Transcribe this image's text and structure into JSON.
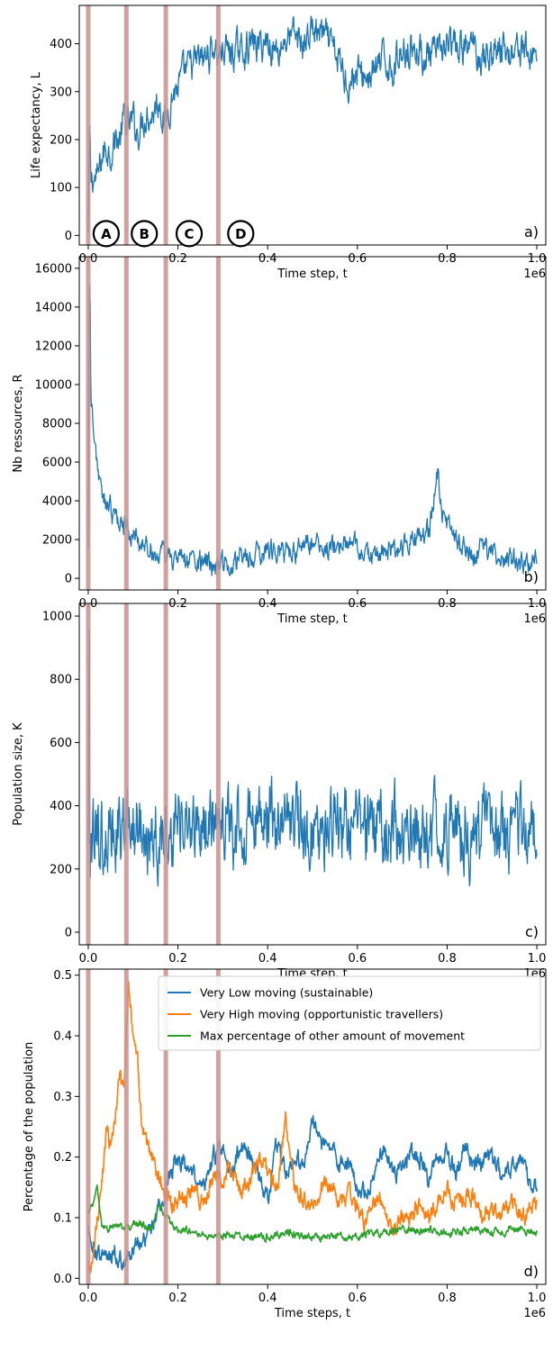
{
  "chart_data": [
    {
      "id": "a",
      "type": "line",
      "panel_label": "a)",
      "xlabel": "Time step, t",
      "x_scale_label": "1e6",
      "ylabel": "Life expectancy, L",
      "xlim": [
        -0.02,
        1.02
      ],
      "ylim": [
        -20,
        480
      ],
      "xticks": [
        0.0,
        0.2,
        0.4,
        0.6,
        0.8,
        1.0
      ],
      "xtick_labels": [
        "0.0",
        "0.2",
        "0.4",
        "0.6",
        "0.8",
        "1.0"
      ],
      "yticks": [
        0,
        100,
        200,
        300,
        400
      ],
      "ytick_labels": [
        "0",
        "100",
        "200",
        "300",
        "400"
      ],
      "phase_markers": [
        {
          "label": "A",
          "x": 0.04
        },
        {
          "label": "B",
          "x": 0.125
        },
        {
          "label": "C",
          "x": 0.225
        },
        {
          "label": "D",
          "x": 0.34
        }
      ],
      "series": [
        {
          "color": "#1f77b4",
          "x": [
            0.0,
            0.003,
            0.006,
            0.01,
            0.02,
            0.03,
            0.04,
            0.05,
            0.06,
            0.07,
            0.08,
            0.09,
            0.1,
            0.11,
            0.12,
            0.13,
            0.14,
            0.15,
            0.16,
            0.17,
            0.18,
            0.19,
            0.2,
            0.22,
            0.24,
            0.26,
            0.28,
            0.29,
            0.3,
            0.32,
            0.34,
            0.36,
            0.38,
            0.4,
            0.42,
            0.44,
            0.46,
            0.48,
            0.5,
            0.52,
            0.54,
            0.56,
            0.58,
            0.6,
            0.62,
            0.64,
            0.66,
            0.68,
            0.7,
            0.72,
            0.74,
            0.76,
            0.78,
            0.8,
            0.82,
            0.84,
            0.86,
            0.88,
            0.9,
            0.92,
            0.94,
            0.96,
            0.98,
            1.0
          ],
          "y": [
            0,
            220,
            110,
            120,
            115,
            160,
            185,
            175,
            205,
            195,
            245,
            225,
            240,
            215,
            235,
            260,
            250,
            270,
            285,
            230,
            270,
            300,
            310,
            345,
            360,
            370,
            395,
            375,
            390,
            380,
            385,
            400,
            395,
            405,
            385,
            410,
            415,
            400,
            430,
            420,
            395,
            360,
            320,
            340,
            330,
            345,
            365,
            350,
            390,
            395,
            380,
            370,
            375,
            400,
            385,
            390,
            395,
            370,
            385,
            390,
            380,
            400,
            375,
            385
          ],
          "noise": 28
        }
      ]
    },
    {
      "id": "b",
      "type": "line",
      "panel_label": "b)",
      "xlabel": "Time step, t",
      "x_scale_label": "1e6",
      "ylabel": "Nb ressources, R",
      "xlim": [
        -0.02,
        1.02
      ],
      "ylim": [
        -600,
        16600
      ],
      "xticks": [
        0.0,
        0.2,
        0.4,
        0.6,
        0.8,
        1.0
      ],
      "xtick_labels": [
        "0.0",
        "0.2",
        "0.4",
        "0.6",
        "0.8",
        "1.0"
      ],
      "yticks": [
        0,
        2000,
        4000,
        6000,
        8000,
        10000,
        12000,
        14000,
        16000
      ],
      "ytick_labels": [
        "0",
        "2000",
        "4000",
        "6000",
        "8000",
        "10000",
        "12000",
        "14000",
        "16000"
      ],
      "series": [
        {
          "color": "#1f77b4",
          "x": [
            0.0,
            0.002,
            0.004,
            0.006,
            0.01,
            0.015,
            0.02,
            0.025,
            0.03,
            0.04,
            0.05,
            0.06,
            0.07,
            0.08,
            0.09,
            0.1,
            0.12,
            0.14,
            0.16,
            0.18,
            0.2,
            0.22,
            0.24,
            0.26,
            0.28,
            0.3,
            0.32,
            0.34,
            0.36,
            0.38,
            0.4,
            0.42,
            0.44,
            0.46,
            0.48,
            0.5,
            0.52,
            0.54,
            0.56,
            0.58,
            0.6,
            0.62,
            0.64,
            0.66,
            0.68,
            0.7,
            0.72,
            0.74,
            0.76,
            0.78,
            0.79,
            0.8,
            0.82,
            0.84,
            0.86,
            0.88,
            0.9,
            0.92,
            0.94,
            0.96,
            0.98,
            1.0
          ],
          "y": [
            2000,
            14500,
            15500,
            9500,
            8000,
            7000,
            6000,
            5000,
            4200,
            3800,
            3600,
            3000,
            3000,
            2800,
            2500,
            2100,
            1800,
            1500,
            1100,
            1200,
            900,
            1000,
            900,
            700,
            500,
            700,
            800,
            1100,
            1000,
            1300,
            1500,
            1200,
            1400,
            1300,
            1600,
            1800,
            1400,
            1500,
            1800,
            1600,
            1600,
            1300,
            1100,
            1200,
            1400,
            1500,
            2000,
            2200,
            2500,
            5500,
            3000,
            2800,
            2000,
            1500,
            1300,
            1500,
            1200,
            1000,
            900,
            800,
            900,
            1000
          ],
          "noise": 450
        }
      ]
    },
    {
      "id": "c",
      "type": "line",
      "panel_label": "c)",
      "xlabel": "Time step, t",
      "x_scale_label": "1e6",
      "ylabel": "Population size, K",
      "xlim": [
        -0.02,
        1.02
      ],
      "ylim": [
        -40,
        1040
      ],
      "xticks": [
        0.0,
        0.2,
        0.4,
        0.6,
        0.8,
        1.0
      ],
      "xtick_labels": [
        "0.0",
        "0.2",
        "0.4",
        "0.6",
        "0.8",
        "1.0"
      ],
      "yticks": [
        0,
        200,
        400,
        600,
        800,
        1000
      ],
      "ytick_labels": [
        "0",
        "200",
        "400",
        "600",
        "800",
        "1000"
      ],
      "series": [
        {
          "color": "#1f77b4",
          "x": [
            0.0,
            0.002,
            0.004,
            0.006,
            0.01,
            0.02,
            0.04,
            0.06,
            0.08,
            0.1,
            0.15,
            0.2,
            0.25,
            0.3,
            0.35,
            0.4,
            0.45,
            0.5,
            0.55,
            0.6,
            0.65,
            0.7,
            0.75,
            0.8,
            0.85,
            0.9,
            0.95,
            1.0
          ],
          "y": [
            300,
            1000,
            20,
            250,
            280,
            300,
            310,
            320,
            330,
            330,
            320,
            330,
            330,
            340,
            350,
            360,
            340,
            330,
            320,
            310,
            320,
            320,
            330,
            330,
            320,
            330,
            330,
            330
          ],
          "noise": 95
        }
      ]
    },
    {
      "id": "d",
      "type": "line",
      "panel_label": "d)",
      "xlabel": "Time steps, t",
      "x_scale_label": "1e6",
      "ylabel": "Percentage of the population",
      "xlim": [
        -0.02,
        1.02
      ],
      "ylim": [
        -0.01,
        0.51
      ],
      "xticks": [
        0.0,
        0.2,
        0.4,
        0.6,
        0.8,
        1.0
      ],
      "xtick_labels": [
        "0.0",
        "0.2",
        "0.4",
        "0.6",
        "0.8",
        "1.0"
      ],
      "yticks": [
        0.0,
        0.1,
        0.2,
        0.3,
        0.4,
        0.5
      ],
      "ytick_labels": [
        "0.0",
        "0.1",
        "0.2",
        "0.3",
        "0.4",
        "0.5"
      ],
      "legend_position": "top-right",
      "series": [
        {
          "name": "Very Low moving (sustainable)",
          "color": "#1f77b4",
          "x": [
            0.0,
            0.01,
            0.02,
            0.04,
            0.06,
            0.08,
            0.1,
            0.12,
            0.14,
            0.16,
            0.18,
            0.2,
            0.22,
            0.24,
            0.26,
            0.28,
            0.3,
            0.32,
            0.34,
            0.36,
            0.38,
            0.4,
            0.42,
            0.44,
            0.46,
            0.48,
            0.5,
            0.52,
            0.54,
            0.56,
            0.58,
            0.6,
            0.62,
            0.64,
            0.66,
            0.68,
            0.7,
            0.72,
            0.74,
            0.76,
            0.78,
            0.8,
            0.82,
            0.84,
            0.86,
            0.88,
            0.9,
            0.92,
            0.94,
            0.96,
            0.98,
            1.0
          ],
          "y": [
            0.08,
            0.05,
            0.04,
            0.03,
            0.04,
            0.03,
            0.05,
            0.06,
            0.08,
            0.12,
            0.16,
            0.2,
            0.18,
            0.16,
            0.15,
            0.2,
            0.21,
            0.17,
            0.22,
            0.2,
            0.17,
            0.13,
            0.22,
            0.18,
            0.2,
            0.19,
            0.27,
            0.22,
            0.22,
            0.19,
            0.2,
            0.15,
            0.14,
            0.18,
            0.22,
            0.17,
            0.18,
            0.21,
            0.2,
            0.16,
            0.2,
            0.21,
            0.17,
            0.22,
            0.19,
            0.19,
            0.2,
            0.17,
            0.18,
            0.2,
            0.17,
            0.15
          ],
          "noise": 0.012
        },
        {
          "name": "Very High moving (opportunistic travellers)",
          "color": "#ff7f0e",
          "x": [
            0.0,
            0.01,
            0.02,
            0.03,
            0.04,
            0.05,
            0.06,
            0.07,
            0.08,
            0.09,
            0.1,
            0.11,
            0.12,
            0.14,
            0.16,
            0.18,
            0.2,
            0.22,
            0.24,
            0.26,
            0.28,
            0.3,
            0.32,
            0.34,
            0.36,
            0.38,
            0.4,
            0.42,
            0.44,
            0.46,
            0.48,
            0.5,
            0.52,
            0.54,
            0.56,
            0.58,
            0.6,
            0.62,
            0.64,
            0.66,
            0.68,
            0.7,
            0.72,
            0.74,
            0.76,
            0.78,
            0.8,
            0.82,
            0.84,
            0.86,
            0.88,
            0.9,
            0.92,
            0.94,
            0.96,
            0.98,
            1.0
          ],
          "y": [
            0.02,
            0.02,
            0.1,
            0.15,
            0.24,
            0.22,
            0.27,
            0.33,
            0.3,
            0.48,
            0.4,
            0.36,
            0.25,
            0.2,
            0.16,
            0.13,
            0.12,
            0.13,
            0.15,
            0.12,
            0.17,
            0.16,
            0.18,
            0.14,
            0.16,
            0.2,
            0.17,
            0.14,
            0.26,
            0.15,
            0.13,
            0.12,
            0.15,
            0.16,
            0.12,
            0.14,
            0.11,
            0.09,
            0.13,
            0.12,
            0.08,
            0.1,
            0.1,
            0.13,
            0.1,
            0.13,
            0.15,
            0.12,
            0.14,
            0.13,
            0.1,
            0.12,
            0.1,
            0.13,
            0.11,
            0.1,
            0.13
          ],
          "noise": 0.012
        },
        {
          "name": "Max percentage of other amount of movement",
          "color": "#2ca02c",
          "x": [
            0.0,
            0.01,
            0.02,
            0.03,
            0.04,
            0.06,
            0.08,
            0.1,
            0.12,
            0.14,
            0.16,
            0.18,
            0.2,
            0.22,
            0.24,
            0.26,
            0.28,
            0.3,
            0.35,
            0.4,
            0.45,
            0.5,
            0.55,
            0.6,
            0.65,
            0.7,
            0.75,
            0.8,
            0.85,
            0.9,
            0.95,
            1.0
          ],
          "y": [
            0.11,
            0.12,
            0.15,
            0.09,
            0.08,
            0.09,
            0.08,
            0.09,
            0.09,
            0.08,
            0.12,
            0.09,
            0.08,
            0.08,
            0.07,
            0.07,
            0.07,
            0.07,
            0.07,
            0.07,
            0.075,
            0.065,
            0.07,
            0.07,
            0.075,
            0.08,
            0.08,
            0.075,
            0.08,
            0.075,
            0.08,
            0.075
          ],
          "noise": 0.005
        }
      ]
    }
  ],
  "phase_lines": {
    "color": "#c9908d",
    "x": [
      0.0,
      0.085,
      0.173,
      0.29
    ]
  }
}
